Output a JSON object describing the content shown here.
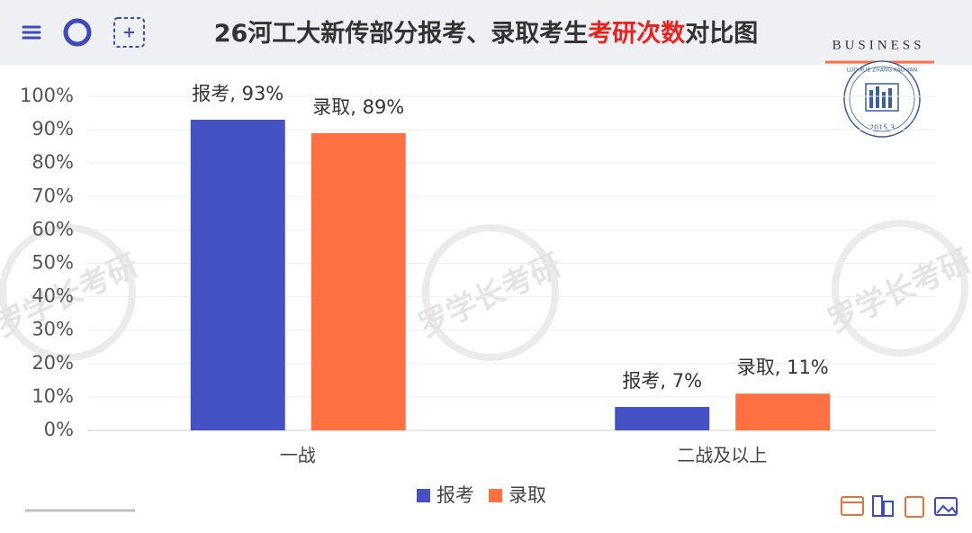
{
  "chart_data": {
    "type": "bar",
    "title_parts": [
      {
        "text": "26河工大新传部分报考、录取考生",
        "color": "#333333"
      },
      {
        "text": "考研次数",
        "color": "#e8231f"
      },
      {
        "text": "对比图",
        "color": "#333333"
      }
    ],
    "brand": "BUSINESS",
    "logo_text": "LUO XUE ZHANG KAO YAN",
    "logo_date": "2015.3",
    "watermark": "罗学长考研",
    "categories": [
      "一战",
      "二战及以上"
    ],
    "series": [
      {
        "name": "报考",
        "color": "#4452c4",
        "values": [
          93,
          7
        ],
        "value_labels": [
          "报考, 93%",
          "报考, 7%"
        ]
      },
      {
        "name": "录取",
        "color": "#ff7043",
        "values": [
          89,
          11
        ],
        "value_labels": [
          "录取, 89%",
          "录取, 11%"
        ]
      }
    ],
    "ylim": [
      0,
      100
    ],
    "yticks": [
      {
        "value": 0,
        "label": "0%"
      },
      {
        "value": 10,
        "label": "10%"
      },
      {
        "value": 20,
        "label": "20%"
      },
      {
        "value": 30,
        "label": "30%"
      },
      {
        "value": 40,
        "label": "40%"
      },
      {
        "value": 50,
        "label": "50%"
      },
      {
        "value": 60,
        "label": "60%"
      },
      {
        "value": 70,
        "label": "70%"
      },
      {
        "value": 80,
        "label": "80%"
      },
      {
        "value": 90,
        "label": "90%"
      },
      {
        "value": 100,
        "label": "100%"
      }
    ],
    "grid": true
  }
}
